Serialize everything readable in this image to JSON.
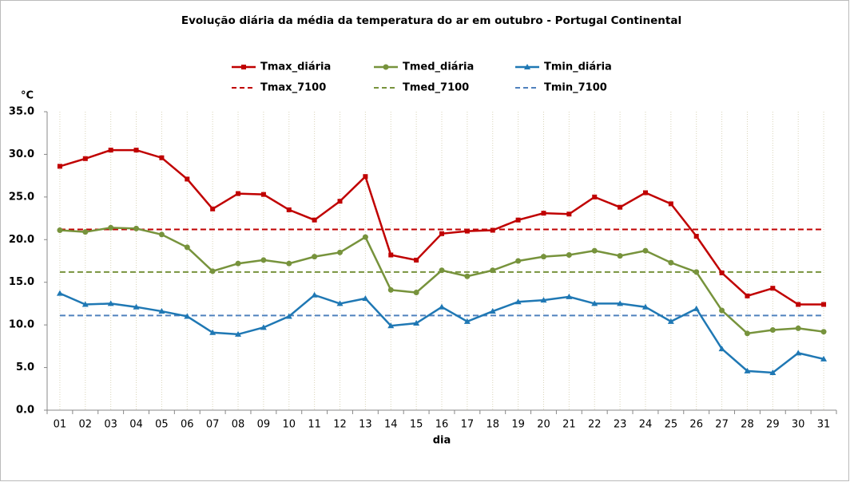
{
  "chart_data": {
    "type": "line",
    "title": "Evolução diária da média da temperatura do ar em outubro - Portugal Continental",
    "y_label": "°C",
    "x_label": "dia",
    "categories": [
      "01",
      "02",
      "03",
      "04",
      "05",
      "06",
      "07",
      "08",
      "09",
      "10",
      "11",
      "12",
      "13",
      "14",
      "15",
      "16",
      "17",
      "18",
      "19",
      "20",
      "21",
      "22",
      "23",
      "24",
      "25",
      "26",
      "27",
      "28",
      "29",
      "30",
      "31"
    ],
    "ylim": [
      0,
      35
    ],
    "yticks": [
      {
        "value": 0,
        "label": "0.0"
      },
      {
        "value": 5,
        "label": "5.0"
      },
      {
        "value": 10,
        "label": "10.0"
      },
      {
        "value": 15,
        "label": "15.0"
      },
      {
        "value": 20,
        "label": "20.0"
      },
      {
        "value": 25,
        "label": "25.0"
      },
      {
        "value": 30,
        "label": "30.0"
      },
      {
        "value": 35,
        "label": "35.0"
      }
    ],
    "grid": true,
    "series": [
      {
        "name": "Tmax_diária",
        "color": "#c00000",
        "marker": "square",
        "values": [
          28.6,
          29.5,
          30.5,
          30.5,
          29.6,
          27.1,
          23.6,
          25.4,
          25.3,
          23.5,
          22.3,
          24.5,
          27.4,
          18.2,
          17.6,
          20.7,
          21.0,
          21.1,
          22.3,
          23.1,
          23.0,
          25.0,
          23.8,
          25.5,
          24.2,
          20.4,
          16.1,
          13.4,
          14.3,
          12.4,
          12.4
        ]
      },
      {
        "name": "Tmed_diária",
        "color": "#77933c",
        "marker": "circle",
        "values": [
          21.1,
          20.9,
          21.4,
          21.3,
          20.6,
          19.1,
          16.3,
          17.2,
          17.6,
          17.2,
          18.0,
          18.5,
          20.3,
          14.1,
          13.8,
          16.4,
          15.7,
          16.4,
          17.5,
          18.0,
          18.2,
          18.7,
          18.1,
          18.7,
          17.3,
          16.2,
          11.7,
          9.0,
          9.4,
          9.6,
          9.2
        ]
      },
      {
        "name": "Tmin_diária",
        "color": "#1f78b4",
        "marker": "triangle",
        "values": [
          13.7,
          12.4,
          12.5,
          12.1,
          11.6,
          11.0,
          9.1,
          8.9,
          9.7,
          11.0,
          13.5,
          12.5,
          13.1,
          9.9,
          10.2,
          12.1,
          10.4,
          11.6,
          12.7,
          12.9,
          13.3,
          12.5,
          12.5,
          12.1,
          10.4,
          11.9,
          7.2,
          4.6,
          4.4,
          6.7,
          6.0
        ]
      },
      {
        "name": "Tmax_7100",
        "color": "#c00000",
        "dashed": true,
        "value": 21.2
      },
      {
        "name": "Tmed_7100",
        "color": "#77933c",
        "dashed": true,
        "value": 16.2
      },
      {
        "name": "Tmin_7100",
        "color": "#4f81bd",
        "dashed": true,
        "value": 11.1
      }
    ]
  }
}
